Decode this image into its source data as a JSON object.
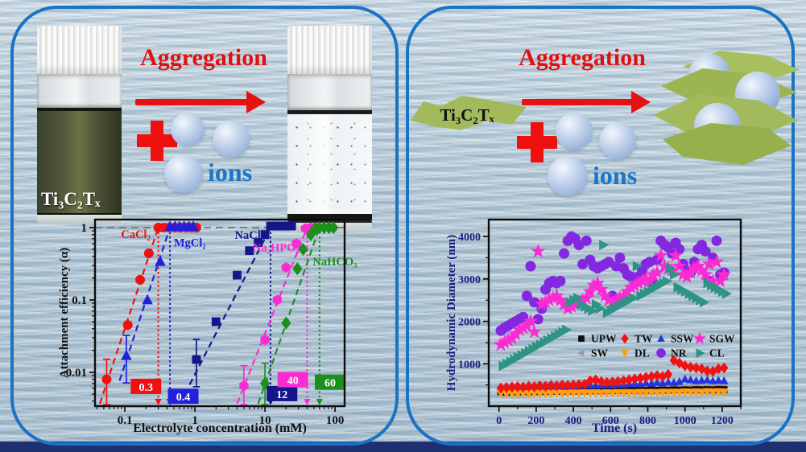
{
  "page": {
    "bottom_bar_color": "#1e2f72",
    "panel_border_color": "#1a73c4",
    "water_base_color": "#b7c8d4"
  },
  "left_panel": {
    "aggregation_label": "Aggregation",
    "ions_label": "ions",
    "vial_label": "Ti₃C₂Tₓ"
  },
  "right_panel": {
    "aggregation_label": "Aggregation",
    "ions_label": "ions",
    "flake_label": "Ti₃C₂Tₓ"
  },
  "chart_data": [
    {
      "type": "scatter",
      "xlabel": "Electrolyte concentration (mM)",
      "ylabel": "Attachment efficiency (α)",
      "xscale": "log",
      "yscale": "log",
      "xlim": [
        0.0375,
        137
      ],
      "ylim": [
        0.0034,
        1.29
      ],
      "xticks": [
        0.1,
        1,
        10,
        100
      ],
      "xtick_labels": [
        "0.1",
        "1",
        "10",
        "100"
      ],
      "yticks": [
        1,
        0.1,
        0.01
      ],
      "ytick_labels": [
        "1",
        "0.1",
        "0.01"
      ],
      "grid": false,
      "hline": 1,
      "legend_position": "none",
      "series": [
        {
          "name": "CaCl₂",
          "color": "#f11010",
          "marker": "circle",
          "msize": 6,
          "ccc": 0.3,
          "ccc_label": "0.3",
          "label_at": [
            0.088,
            0.72
          ],
          "box_at": [
            0.2,
            0.0063
          ],
          "points": [
            [
              0.055,
              0.008,
              1
            ],
            [
              0.11,
              0.045
            ],
            [
              0.165,
              0.19
            ],
            [
              0.22,
              0.44
            ],
            [
              0.3,
              1.0
            ],
            [
              0.36,
              1.0
            ],
            [
              0.43,
              1.0
            ],
            [
              0.52,
              1.0
            ],
            [
              0.62,
              1.0
            ],
            [
              0.75,
              1.0
            ],
            [
              0.9,
              1.0
            ],
            [
              1.05,
              1.0
            ]
          ]
        },
        {
          "name": "MgCl₂",
          "color": "#2121dd",
          "marker": "triangle-up",
          "msize": 6.5,
          "ccc": 0.44,
          "ccc_label": "0.4",
          "label_at": [
            0.5,
            0.55
          ],
          "box_at": [
            0.68,
            0.0046
          ],
          "points": [
            [
              0.105,
              0.017,
              1
            ],
            [
              0.21,
              0.1
            ],
            [
              0.32,
              0.34
            ],
            [
              0.44,
              1.04
            ],
            [
              0.52,
              1.04
            ],
            [
              0.6,
              1.04
            ],
            [
              0.7,
              1.04
            ],
            [
              0.82,
              1.04
            ],
            [
              0.95,
              1.04
            ]
          ]
        },
        {
          "name": "NaCl",
          "color": "#15158c",
          "marker": "square",
          "msize": 6,
          "ccc": 12,
          "ccc_label": "12",
          "label_at": [
            3.7,
            0.7
          ],
          "box_at": [
            17.5,
            0.005
          ],
          "points": [
            [
              1.05,
              0.015,
              1
            ],
            [
              2,
              0.05
            ],
            [
              4,
              0.22
            ],
            [
              6,
              0.48
            ],
            [
              8,
              0.62
            ],
            [
              10,
              0.8
            ],
            [
              12,
              1.05
            ],
            [
              14.5,
              1.05
            ],
            [
              17,
              1.05
            ],
            [
              20,
              1.05
            ],
            [
              24,
              1.05
            ]
          ]
        },
        {
          "name": "Na₂HPO₄",
          "color": "#fb2bd3",
          "marker": "hexagon",
          "msize": 6.5,
          "ccc": 40,
          "ccc_label": "40",
          "label_at": [
            6.7,
            0.47
          ],
          "box_at": [
            25,
            0.0078
          ],
          "points": [
            [
              5,
              0.0065,
              1
            ],
            [
              10,
              0.028
            ],
            [
              15,
              0.1
            ],
            [
              20,
              0.28
            ],
            [
              28,
              0.6
            ],
            [
              38,
              0.97
            ],
            [
              45,
              1.0
            ],
            [
              52,
              1.0
            ]
          ]
        },
        {
          "name": "NaHCO₃",
          "color": "#1d8f1d",
          "marker": "diamond",
          "msize": 6.5,
          "ccc": 60,
          "ccc_label": "60",
          "label_at": [
            48,
            0.3
          ],
          "box_at": [
            85,
            0.0072
          ],
          "points": [
            [
              10,
              0.007,
              1
            ],
            [
              20,
              0.048
            ],
            [
              29,
              0.27
            ],
            [
              35,
              0.5
            ],
            [
              45,
              0.8
            ],
            [
              52,
              0.97
            ],
            [
              60,
              1.0
            ],
            [
              70,
              1.0
            ],
            [
              82,
              1.0
            ],
            [
              95,
              1.0
            ]
          ]
        }
      ]
    },
    {
      "type": "scatter",
      "xlabel": "Time (s)",
      "ylabel": "Hydrodynamic Diameter (nm)",
      "xscale": "linear",
      "yscale": "linear",
      "xlim": [
        -55,
        1300
      ],
      "ylim": [
        0,
        4400
      ],
      "xticks": [
        0,
        200,
        400,
        600,
        800,
        1000,
        1200
      ],
      "xtick_labels": [
        "0",
        "200",
        "400",
        "600",
        "800",
        "1000",
        "1200"
      ],
      "yticks": [
        1000,
        2000,
        3000,
        4000
      ],
      "ytick_labels": [
        "1000",
        "2000",
        "3000",
        "4000"
      ],
      "xminor": 100,
      "yminor": 500,
      "grid": false,
      "legend": {
        "entries": [
          "UPW",
          "TW",
          "SSW",
          "SGW",
          "SW",
          "DL",
          "NR",
          "CL"
        ],
        "position": "inside-center-right"
      },
      "series": [
        {
          "name": "NR",
          "color": "#8427e0",
          "marker": "circle",
          "msize": 6.5,
          "x_start": 10,
          "x_step": 20,
          "values": [
            1780,
            1850,
            1900,
            1950,
            2000,
            2050,
            2100,
            2600,
            3300,
            2450,
            2050,
            2300,
            2750,
            2900,
            2950,
            2900,
            2950,
            3600,
            3900,
            4000,
            3950,
            3800,
            3350,
            3900,
            3450,
            3300,
            3250,
            3300,
            3350,
            3400,
            2600,
            3300,
            3500,
            3250,
            3100,
            3050,
            3000,
            3050,
            3200,
            3350,
            3400,
            2900,
            3450,
            3900,
            3800,
            3750,
            3600,
            3850,
            3700,
            3350,
            3200,
            3150,
            3400,
            3700,
            3800,
            3650,
            2950,
            3500,
            3900,
            3100,
            3150
          ]
        },
        {
          "name": "SGW",
          "color": "#fb2bd3",
          "marker": "star",
          "msize": 7,
          "x_start": 10,
          "x_step": 20,
          "values": [
            1450,
            1500,
            1550,
            1600,
            1700,
            1800,
            1850,
            1900,
            2000,
            1750,
            3650,
            2400,
            2450,
            2500,
            2550,
            2600,
            2500,
            2400,
            2300,
            2350,
            2400,
            2450,
            2500,
            2550,
            2700,
            2850,
            2900,
            2750,
            2600,
            2500,
            2450,
            2500,
            2550,
            2600,
            2700,
            2800,
            2850,
            2900,
            2950,
            3000,
            2950,
            3100,
            3150,
            3550,
            3300,
            3250,
            3200,
            3550,
            3300,
            3100,
            3050,
            3150,
            3250,
            3300,
            3200,
            3100,
            3350,
            2950,
            3400,
            2950,
            3100
          ]
        },
        {
          "name": "CL",
          "color": "#2e9284",
          "marker": "triangle-right",
          "msize": 6.5,
          "x_start": 20,
          "x_step": 20,
          "values": [
            950,
            1000,
            1050,
            1100,
            1150,
            1200,
            1250,
            1300,
            1350,
            1400,
            1450,
            1500,
            1550,
            1600,
            1650,
            1700,
            1750,
            1800,
            2450,
            2500,
            2550,
            2400,
            2350,
            2300,
            2250,
            2400,
            2300,
            3800,
            2200,
            2250,
            2300,
            2350,
            2400,
            2450,
            2500,
            2550,
            3300,
            2600,
            2650,
            2700,
            2750,
            2800,
            2850,
            2900,
            2950,
            3250,
            3100,
            2800,
            2750,
            2700,
            2650,
            2600,
            2550,
            2500,
            2450,
            2900,
            2850,
            2800,
            2750,
            2700,
            2650
          ]
        },
        {
          "name": "SW",
          "color": "#9b9b9b",
          "marker": "triangle-left",
          "msize": 5,
          "x_start": 10,
          "x_step": 30,
          "values": [
            380,
            390,
            385,
            395,
            390,
            400,
            395,
            400,
            405,
            400,
            410,
            480,
            420,
            415,
            420,
            500,
            430,
            425,
            430,
            435,
            430,
            440,
            435,
            440,
            445,
            440,
            450,
            520,
            540,
            450,
            455,
            450,
            460,
            455,
            460,
            465,
            460,
            470,
            465,
            470,
            465
          ]
        },
        {
          "name": "UPW",
          "color": "#0c0c0c",
          "marker": "square",
          "msize": 4.8,
          "x_start": 10,
          "x_step": 30,
          "values": [
            340,
            330,
            345,
            335,
            350,
            340,
            350,
            345,
            355,
            350,
            355,
            350,
            360,
            355,
            360,
            365,
            360,
            365,
            360,
            370,
            365,
            370,
            365,
            375,
            370,
            375,
            370,
            380,
            375,
            380,
            375,
            385,
            380,
            385,
            380,
            390,
            385,
            390,
            385,
            395,
            390
          ]
        },
        {
          "name": "SSW",
          "color": "#2335e0",
          "marker": "triangle-up",
          "msize": 5,
          "x_start": 10,
          "x_step": 30,
          "values": [
            400,
            420,
            430,
            440,
            430,
            450,
            440,
            460,
            450,
            460,
            470,
            460,
            480,
            470,
            490,
            500,
            490,
            500,
            490,
            510,
            500,
            520,
            510,
            530,
            540,
            530,
            550,
            540,
            560,
            550,
            570,
            560,
            580,
            640,
            620,
            600,
            610,
            620,
            600,
            610,
            600
          ]
        },
        {
          "name": "DL",
          "color": "#ff9d15",
          "marker": "triangle-down",
          "msize": 5.5,
          "x_start": 10,
          "x_step": 30,
          "values": [
            310,
            290,
            300,
            285,
            295,
            290,
            300,
            295,
            300,
            290,
            305,
            295,
            300,
            305,
            300,
            310,
            305,
            310,
            300,
            310,
            305,
            315,
            310,
            315,
            310,
            320,
            315,
            320,
            315,
            325,
            320,
            325,
            320,
            330,
            325,
            330,
            325,
            335,
            330,
            335,
            330
          ]
        },
        {
          "name": "TW",
          "color": "#ee1414",
          "marker": "diamond",
          "msize": 5.5,
          "x_start": 10,
          "x_step": 30,
          "values": [
            430,
            440,
            450,
            460,
            450,
            470,
            460,
            480,
            470,
            490,
            480,
            500,
            490,
            500,
            510,
            520,
            600,
            620,
            580,
            560,
            570,
            580,
            600,
            620,
            640,
            660,
            680,
            700,
            720,
            700,
            750,
            1080,
            1020,
            950,
            920,
            900,
            880,
            830,
            820,
            880,
            900
          ]
        }
      ]
    }
  ]
}
